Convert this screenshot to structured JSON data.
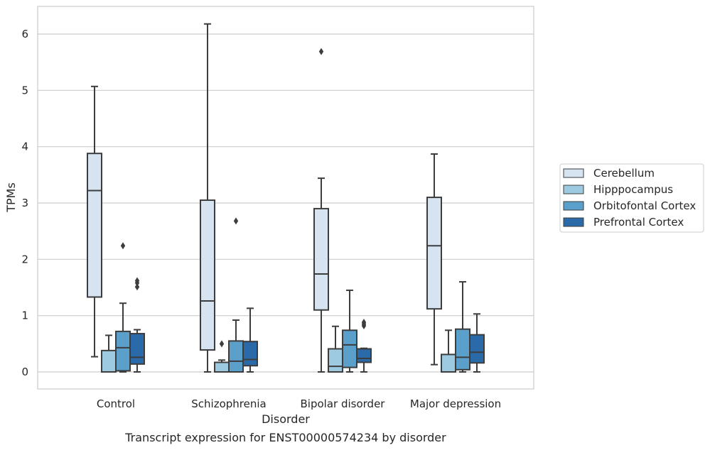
{
  "chart_data": {
    "type": "box",
    "title": "",
    "caption": "Transcript expression for ENST00000574234 by disorder",
    "xlabel": "Disorder",
    "ylabel": "TPMs",
    "categories": [
      "Control",
      "Schizophrenia",
      "Bipolar disorder",
      "Major depression"
    ],
    "ylim": [
      -0.3,
      6.5
    ],
    "yticks": [
      0,
      1,
      2,
      3,
      4,
      5,
      6
    ],
    "grid": "horizontal",
    "legend_position": "right",
    "series": [
      {
        "name": "Cerebellum",
        "color": "#d6e4f2",
        "boxes": [
          {
            "whisker_low": 0.27,
            "q1": 1.33,
            "median": 3.22,
            "q3": 3.88,
            "whisker_high": 5.07,
            "outliers": []
          },
          {
            "whisker_low": 0.0,
            "q1": 0.39,
            "median": 1.26,
            "q3": 3.05,
            "whisker_high": 6.18,
            "outliers": []
          },
          {
            "whisker_low": 0.0,
            "q1": 1.1,
            "median": 1.74,
            "q3": 2.9,
            "whisker_high": 3.44,
            "outliers": [
              5.69
            ]
          },
          {
            "whisker_low": 0.13,
            "q1": 1.12,
            "median": 2.24,
            "q3": 3.1,
            "whisker_high": 3.87,
            "outliers": []
          }
        ]
      },
      {
        "name": "Hipppocampus",
        "color": "#9ecae1",
        "boxes": [
          {
            "whisker_low": 0.0,
            "q1": 0.0,
            "median": 0.0,
            "q3": 0.38,
            "whisker_high": 0.65,
            "outliers": []
          },
          {
            "whisker_low": 0.0,
            "q1": 0.0,
            "median": 0.0,
            "q3": 0.17,
            "whisker_high": 0.21,
            "outliers": [
              0.5
            ]
          },
          {
            "whisker_low": 0.0,
            "q1": 0.0,
            "median": 0.1,
            "q3": 0.41,
            "whisker_high": 0.81,
            "outliers": []
          },
          {
            "whisker_low": 0.0,
            "q1": 0.0,
            "median": 0.0,
            "q3": 0.31,
            "whisker_high": 0.74,
            "outliers": []
          }
        ]
      },
      {
        "name": "Orbitofontal Cortex",
        "color": "#5b9fcb",
        "boxes": [
          {
            "whisker_low": 0.0,
            "q1": 0.02,
            "median": 0.43,
            "q3": 0.72,
            "whisker_high": 1.22,
            "outliers": [
              2.24
            ]
          },
          {
            "whisker_low": 0.0,
            "q1": 0.0,
            "median": 0.19,
            "q3": 0.55,
            "whisker_high": 0.92,
            "outliers": [
              2.68
            ]
          },
          {
            "whisker_low": 0.0,
            "q1": 0.08,
            "median": 0.48,
            "q3": 0.74,
            "whisker_high": 1.45,
            "outliers": []
          },
          {
            "whisker_low": 0.0,
            "q1": 0.04,
            "median": 0.26,
            "q3": 0.76,
            "whisker_high": 1.6,
            "outliers": []
          }
        ]
      },
      {
        "name": "Prefrontal Cortex",
        "color": "#2b6aa8",
        "boxes": [
          {
            "whisker_low": 0.0,
            "q1": 0.14,
            "median": 0.26,
            "q3": 0.68,
            "whisker_high": 0.75,
            "outliers": [
              1.51,
              1.58,
              1.62
            ]
          },
          {
            "whisker_low": 0.0,
            "q1": 0.11,
            "median": 0.22,
            "q3": 0.54,
            "whisker_high": 1.13,
            "outliers": []
          },
          {
            "whisker_low": 0.0,
            "q1": 0.17,
            "median": 0.24,
            "q3": 0.41,
            "whisker_high": 0.42,
            "outliers": [
              0.82,
              0.85,
              0.88
            ]
          },
          {
            "whisker_low": 0.0,
            "q1": 0.16,
            "median": 0.35,
            "q3": 0.66,
            "whisker_high": 1.03,
            "outliers": []
          }
        ]
      }
    ]
  }
}
